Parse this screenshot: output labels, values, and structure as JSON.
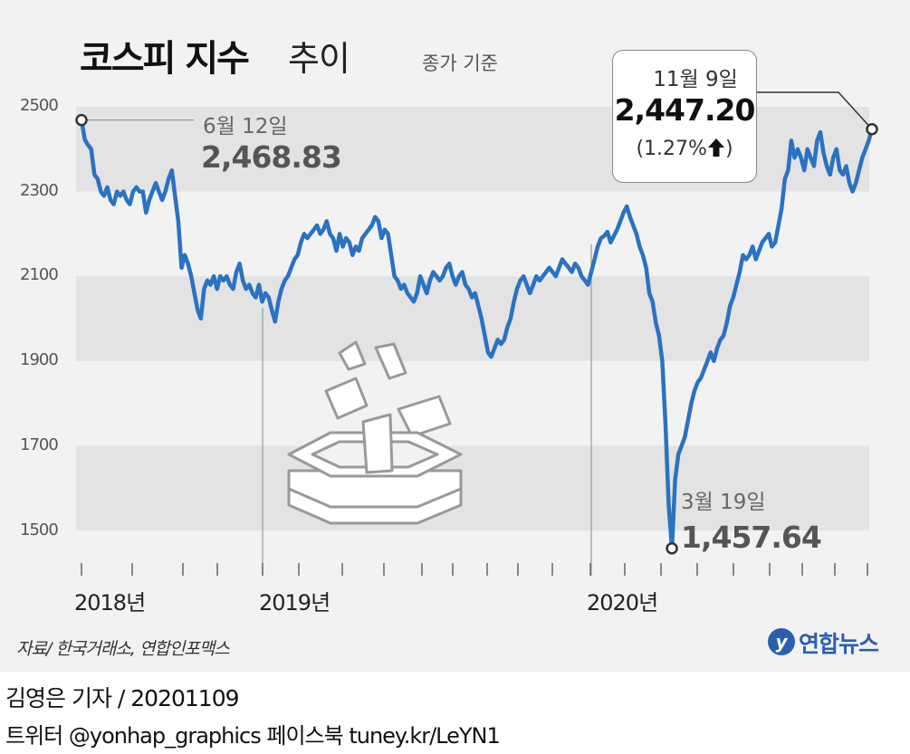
{
  "title": {
    "main": "코스피 지수",
    "sub": "추이",
    "note": "종가 기준"
  },
  "chart_data": {
    "type": "line",
    "title": "코스피 지수 추이",
    "subtitle": "종가 기준",
    "ylim": [
      1400,
      2500
    ],
    "yticks": [
      "2500",
      "2300",
      "2100",
      "1900",
      "1700",
      "1500"
    ],
    "xticks": [
      "2018년",
      "2019년",
      "2020년"
    ],
    "color": "#2a72c2",
    "series": [
      {
        "values": [
          2468.83,
          2423,
          2410,
          2400,
          2340,
          2330,
          2300,
          2290,
          2310,
          2280,
          2270,
          2300,
          2290,
          2300,
          2280,
          2270,
          2300,
          2310,
          2300,
          2300,
          2250,
          2280,
          2300,
          2320,
          2300,
          2280,
          2300,
          2330,
          2350,
          2290,
          2230,
          2120,
          2150,
          2130,
          2100,
          2060,
          2020,
          2000,
          2070,
          2090,
          2080,
          2100,
          2070,
          2100,
          2090,
          2100,
          2080,
          2070,
          2110,
          2130,
          2090,
          2070,
          2080,
          2060,
          2050,
          2080,
          2040,
          2060,
          2050,
          2020,
          1993,
          2040,
          2070,
          2090,
          2100,
          2120,
          2140,
          2150,
          2180,
          2200,
          2190,
          2200,
          2210,
          2220,
          2200,
          2210,
          2230,
          2200,
          2190,
          2160,
          2200,
          2170,
          2190,
          2180,
          2150,
          2170,
          2160,
          2190,
          2200,
          2210,
          2220,
          2240,
          2230,
          2190,
          2210,
          2200,
          2150,
          2100,
          2090,
          2070,
          2080,
          2060,
          2050,
          2040,
          2060,
          2100,
          2080,
          2060,
          2090,
          2110,
          2100,
          2090,
          2100,
          2120,
          2130,
          2100,
          2080,
          2100,
          2110,
          2080,
          2070,
          2050,
          2060,
          2030,
          2000,
          1960,
          1920,
          1910,
          1930,
          1950,
          1940,
          1950,
          1980,
          2000,
          2040,
          2070,
          2090,
          2100,
          2080,
          2060,
          2080,
          2100,
          2090,
          2100,
          2110,
          2120,
          2110,
          2100,
          2120,
          2140,
          2130,
          2120,
          2110,
          2130,
          2120,
          2100,
          2090,
          2080,
          2110,
          2140,
          2170,
          2190,
          2195,
          2205,
          2180,
          2195,
          2210,
          2230,
          2250,
          2265,
          2240,
          2220,
          2200,
          2170,
          2150,
          2120,
          2060,
          2040,
          1990,
          1960,
          1900,
          1750,
          1560,
          1457.64,
          1620,
          1680,
          1700,
          1720,
          1760,
          1800,
          1830,
          1850,
          1860,
          1880,
          1900,
          1920,
          1900,
          1930,
          1950,
          1960,
          1990,
          2030,
          2050,
          2080,
          2110,
          2150,
          2140,
          2150,
          2170,
          2140,
          2160,
          2180,
          2190,
          2200,
          2170,
          2180,
          2220,
          2260,
          2330,
          2350,
          2420,
          2380,
          2400,
          2380,
          2350,
          2400,
          2380,
          2360,
          2420,
          2440,
          2390,
          2360,
          2340,
          2380,
          2400,
          2350,
          2340,
          2360,
          2320,
          2300,
          2320,
          2350,
          2380,
          2400,
          2420,
          2447.2
        ]
      }
    ],
    "annotations": [
      {
        "date": "6월 12일",
        "value": "2,468.83"
      },
      {
        "date": "3월 19일",
        "value": "1,457.64"
      },
      {
        "date": "11월 9일",
        "value": "2,447.20",
        "change": "(1.27%"
      }
    ]
  },
  "source": "자료/ 한국거래소, 연합인포맥스",
  "logo": {
    "symbol": "y",
    "text": "연합뉴스"
  },
  "credit": "김영은 기자 / 20201109",
  "social": "트위터 @yonhap_graphics  페이스북 tuney.kr/LeYN1"
}
